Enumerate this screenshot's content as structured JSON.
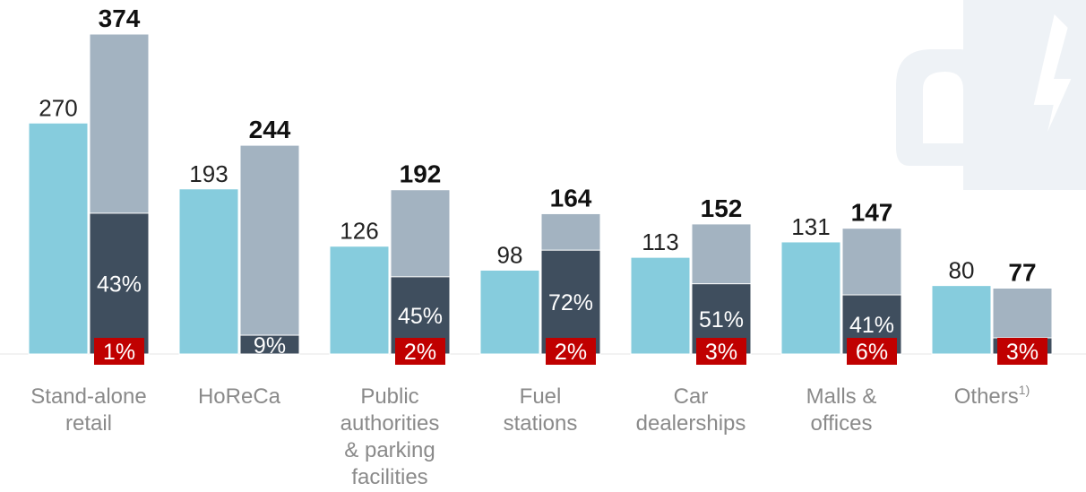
{
  "chart_data": {
    "type": "bar",
    "categories": [
      "Stand-alone retail",
      "HoReCa",
      "Public authorities & parking facilities",
      "Fuel stations",
      "Car dealerships",
      "Malls & offices",
      "Others"
    ],
    "category_label_lines": [
      [
        "Stand-alone",
        "retail"
      ],
      [
        "HoReCa"
      ],
      [
        "Public",
        "authorities",
        "& parking",
        "facilities"
      ],
      [
        "Fuel",
        "stations"
      ],
      [
        "Car",
        "dealerships"
      ],
      [
        "Malls &",
        "offices"
      ],
      [
        "Others"
      ]
    ],
    "category_footnotes": [
      "",
      "",
      "",
      "",
      "",
      "",
      "1)"
    ],
    "series": [
      {
        "values": [
          270,
          193,
          126,
          98,
          113,
          131,
          80
        ]
      },
      {
        "values": [
          374,
          244,
          192,
          164,
          152,
          147,
          77
        ]
      }
    ],
    "share_dark": [
      43,
      9,
      45,
      72,
      51,
      41,
      null
    ],
    "share_red": [
      1,
      null,
      2,
      2,
      3,
      6,
      3
    ],
    "dark_labels": [
      "43%",
      "9%",
      "45%",
      "72%",
      "51%",
      "41%",
      ""
    ],
    "red_labels": [
      "1%",
      "",
      "2%",
      "2%",
      "3%",
      "6%",
      "3%"
    ],
    "ylim": [
      0,
      374
    ],
    "colors": {
      "series1": "#86ccdd",
      "series2": "#a3b3c1",
      "dark": "#3f4e5e",
      "red": "#c00000",
      "watermark": "#eef2f6"
    }
  }
}
